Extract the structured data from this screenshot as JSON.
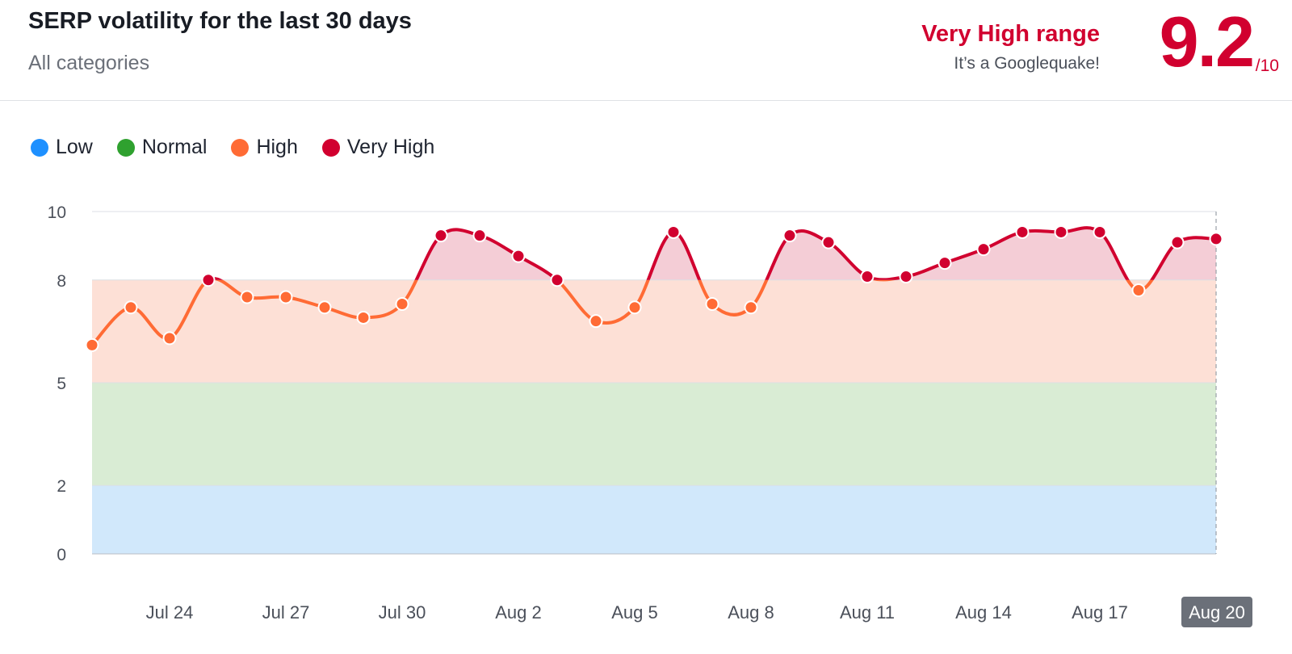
{
  "header": {
    "title": "SERP volatility for the last 30 days",
    "subtitle": "All categories",
    "range_label": "Very High range",
    "range_sub": "It’s a Googlequake!",
    "score": "9.2",
    "score_max": "/10"
  },
  "colors": {
    "low": "#1e90ff",
    "normal": "#2fa12f",
    "high": "#ff6b35",
    "very_high": "#d1002f",
    "band_low": "#d1e8fb",
    "band_normal": "#d9ecd4",
    "band_high": "#fde0d6",
    "band_very_high": "#f4cdd6",
    "highlight_label_bg": "#6b7079"
  },
  "legend": [
    {
      "label": "Low",
      "color": "#1e90ff"
    },
    {
      "label": "Normal",
      "color": "#2fa12f"
    },
    {
      "label": "High",
      "color": "#ff6b35"
    },
    {
      "label": "Very High",
      "color": "#d1002f"
    }
  ],
  "chart_data": {
    "type": "line",
    "ylim": [
      0,
      10
    ],
    "yticks": [
      0,
      2,
      5,
      8,
      10
    ],
    "bands": [
      {
        "name": "Low",
        "from": 0,
        "to": 2
      },
      {
        "name": "Normal",
        "from": 2,
        "to": 5
      },
      {
        "name": "High",
        "from": 5,
        "to": 8
      },
      {
        "name": "Very High",
        "from": 8,
        "to": 10
      }
    ],
    "x": [
      "Jul 22",
      "Jul 23",
      "Jul 24",
      "Jul 25",
      "Jul 26",
      "Jul 27",
      "Jul 28",
      "Jul 29",
      "Jul 30",
      "Jul 31",
      "Aug 1",
      "Aug 2",
      "Aug 3",
      "Aug 4",
      "Aug 5",
      "Aug 6",
      "Aug 7",
      "Aug 8",
      "Aug 9",
      "Aug 10",
      "Aug 11",
      "Aug 12",
      "Aug 13",
      "Aug 14",
      "Aug 15",
      "Aug 16",
      "Aug 17",
      "Aug 18",
      "Aug 19",
      "Aug 20"
    ],
    "values": [
      6.1,
      7.2,
      6.3,
      8.0,
      7.5,
      7.5,
      7.2,
      6.9,
      7.3,
      9.3,
      9.3,
      8.7,
      8.0,
      6.8,
      7.2,
      9.4,
      7.3,
      7.2,
      9.3,
      9.1,
      8.1,
      8.1,
      8.5,
      8.9,
      9.4,
      9.4,
      9.4,
      7.7,
      9.1,
      9.2
    ],
    "xtick_labels": [
      "Jul 24",
      "Jul 27",
      "Jul 30",
      "Aug 2",
      "Aug 5",
      "Aug 8",
      "Aug 11",
      "Aug 14",
      "Aug 17",
      "Aug 20"
    ],
    "highlighted_x": "Aug 20",
    "grid": true,
    "legend_position": "top-left"
  }
}
